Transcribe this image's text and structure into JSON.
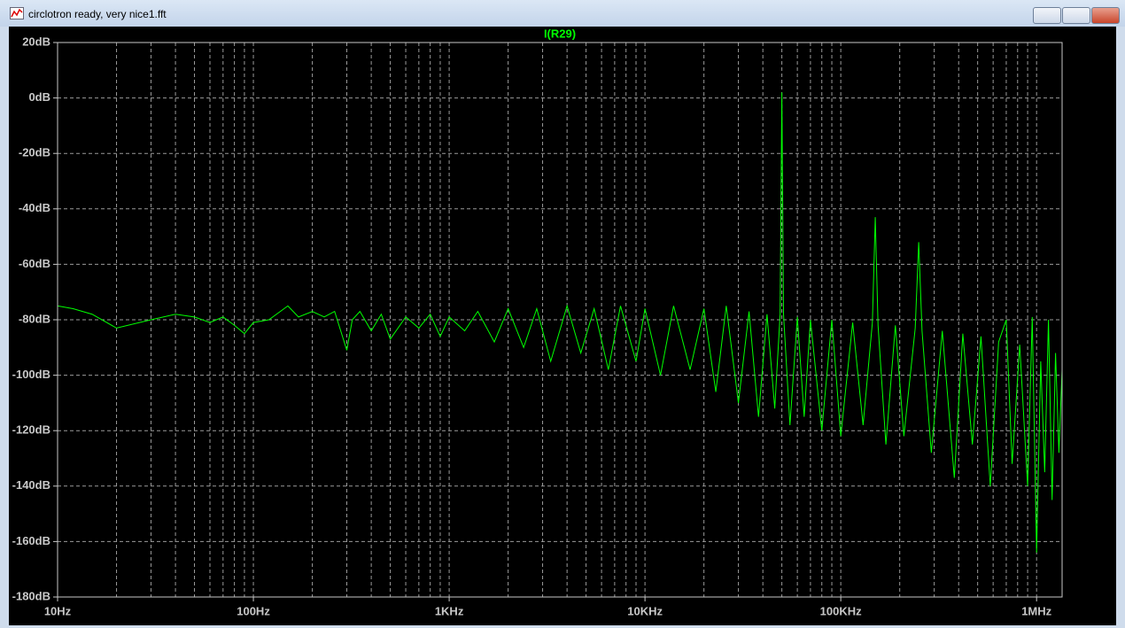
{
  "window": {
    "title": "circlotron ready, very nice1.fft"
  },
  "chart_data": {
    "type": "line",
    "xscale": "log",
    "grid": true,
    "xlim": [
      10,
      1350000
    ],
    "ylim": [
      -180,
      20
    ],
    "xticks": [
      {
        "value": 10,
        "label": "10Hz"
      },
      {
        "value": 100,
        "label": "100Hz"
      },
      {
        "value": 1000,
        "label": "1KHz"
      },
      {
        "value": 10000,
        "label": "10KHz"
      },
      {
        "value": 100000,
        "label": "100KHz"
      },
      {
        "value": 1000000,
        "label": "1MHz"
      }
    ],
    "xminorticks": [
      20,
      30,
      40,
      50,
      60,
      70,
      80,
      90,
      200,
      300,
      400,
      500,
      600,
      700,
      800,
      900,
      2000,
      3000,
      4000,
      5000,
      6000,
      7000,
      8000,
      9000,
      20000,
      30000,
      40000,
      50000,
      60000,
      70000,
      80000,
      90000,
      200000,
      300000,
      400000,
      500000,
      600000,
      700000,
      800000,
      900000
    ],
    "yticks": [
      {
        "value": 20,
        "label": "20dB"
      },
      {
        "value": 0,
        "label": "0dB"
      },
      {
        "value": -20,
        "label": "-20dB"
      },
      {
        "value": -40,
        "label": "-40dB"
      },
      {
        "value": -60,
        "label": "-60dB"
      },
      {
        "value": -80,
        "label": "-80dB"
      },
      {
        "value": -100,
        "label": "-100dB"
      },
      {
        "value": -120,
        "label": "-120dB"
      },
      {
        "value": -140,
        "label": "-140dB"
      },
      {
        "value": -160,
        "label": "-160dB"
      },
      {
        "value": -180,
        "label": "-180dB"
      }
    ],
    "x": [
      10,
      12,
      15,
      20,
      30,
      40,
      50,
      60,
      70,
      80,
      90,
      100,
      120,
      150,
      170,
      200,
      230,
      260,
      300,
      320,
      350,
      400,
      450,
      500,
      600,
      700,
      800,
      900,
      1000,
      1200,
      1400,
      1700,
      2000,
      2400,
      2800,
      3300,
      4000,
      4700,
      5500,
      6500,
      7500,
      9000,
      10000,
      12000,
      14000,
      17000,
      20000,
      23000,
      26000,
      30000,
      34000,
      38000,
      42000,
      46000,
      49000,
      50000,
      51000,
      55000,
      60000,
      65000,
      70000,
      80000,
      90000,
      100000,
      115000,
      130000,
      145000,
      150000,
      155000,
      170000,
      190000,
      210000,
      240000,
      250000,
      260000,
      290000,
      330000,
      380000,
      420000,
      470000,
      520000,
      580000,
      640000,
      700000,
      750000,
      820000,
      900000,
      950000,
      1000000,
      1050000,
      1100000,
      1150000,
      1200000,
      1250000,
      1300000,
      1350000
    ],
    "series": [
      {
        "name": "I(R29)",
        "color": "#00ff00",
        "values": [
          -75,
          -76,
          -78,
          -83,
          -80,
          -78,
          -79,
          -81,
          -79,
          -82,
          -85,
          -81,
          -80,
          -75,
          -79,
          -77,
          -79,
          -77,
          -91,
          -80,
          -77,
          -84,
          -78,
          -87,
          -79,
          -83,
          -78,
          -86,
          -79,
          -84,
          -77,
          -88,
          -76,
          -90,
          -76,
          -95,
          -75,
          -92,
          -76,
          -98,
          -75,
          -95,
          -76,
          -100,
          -75,
          -98,
          -76,
          -106,
          -75,
          -110,
          -77,
          -115,
          -78,
          -112,
          -78,
          2,
          -78,
          -118,
          -79,
          -115,
          -80,
          -120,
          -80,
          -122,
          -81,
          -118,
          -81,
          -43,
          -82,
          -125,
          -82,
          -122,
          -83,
          -52,
          -84,
          -128,
          -84,
          -137,
          -85,
          -125,
          -86,
          -140,
          -88,
          -80,
          -132,
          -89,
          -140,
          -79,
          -164,
          -95,
          -135,
          -80,
          -145,
          -92,
          -128,
          -98
        ]
      }
    ]
  }
}
